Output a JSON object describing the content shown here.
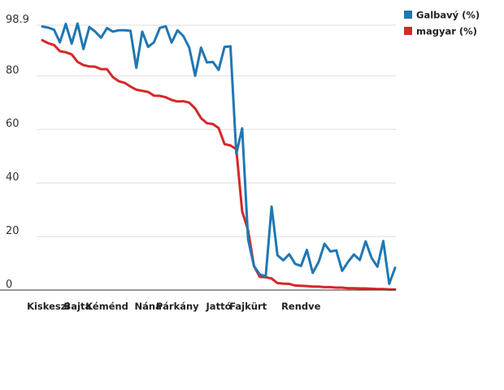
{
  "chart_data": {
    "type": "line",
    "title": "",
    "xlabel": "",
    "ylabel": "",
    "ylim": [
      0,
      98.9
    ],
    "y_ticks": [
      "0",
      "20",
      "40",
      "60",
      "80",
      "98.9"
    ],
    "y_tick_values": [
      0,
      20,
      40,
      60,
      80,
      98.9
    ],
    "x_tick_labels": [
      "Kiskeszi",
      "Bajta",
      "Kéménd",
      "Nána",
      "Párkány",
      "Jattó",
      "Fajkürt",
      "Rendve"
    ],
    "x_tick_indices": [
      1,
      6,
      11,
      18,
      23,
      30,
      35,
      44
    ],
    "grid": true,
    "legend_position": "top-right",
    "colors": {
      "galbavy": "#1f77b4",
      "magyar": "#d62728",
      "grid": "#dddddd",
      "axis": "#333333"
    },
    "series": [
      {
        "name": "Galbavý (%)",
        "color": "#1f77b4",
        "values": [
          98.4,
          98,
          97.2,
          92.5,
          99.4,
          92,
          99.5,
          90,
          98.2,
          96.5,
          94.2,
          97.8,
          96.5,
          97,
          97,
          96.8,
          83,
          96.5,
          90.8,
          92.5,
          97.9,
          98.5,
          92.4,
          97,
          94.8,
          90.5,
          80,
          90.5,
          85,
          85.2,
          82.2,
          90.8,
          91,
          50.9,
          60.4,
          18.9,
          9,
          5.8,
          5.2,
          31.2,
          13,
          11.1,
          13.4,
          9.8,
          9,
          15,
          6.4,
          10.5,
          17.3,
          14.4,
          14.8,
          7.2,
          10.5,
          13.3,
          11.2,
          18.2,
          12,
          8.7,
          18.3,
          2.3,
          8.3
        ]
      },
      {
        "name": "magyar (%)",
        "color": "#d62728",
        "values": [
          93.3,
          92.2,
          91.5,
          89.2,
          88.8,
          88,
          85.2,
          84,
          83.5,
          83.4,
          82.5,
          82.5,
          79.5,
          78,
          77.4,
          76,
          74.8,
          74.4,
          74,
          72.6,
          72.5,
          72,
          71,
          70.4,
          70.5,
          70,
          67.8,
          64.2,
          62.3,
          62,
          60.5,
          54.5,
          54,
          52.6,
          29.4,
          22.3,
          9,
          4.9,
          4.8,
          4.3,
          2.6,
          2.4,
          2.3,
          1.7,
          1.6,
          1.5,
          1.3,
          1.3,
          1.1,
          1.1,
          0.9,
          0.9,
          0.7,
          0.7,
          0.6,
          0.6,
          0.5,
          0.4,
          0.4,
          0.2,
          0.2
        ]
      }
    ]
  }
}
